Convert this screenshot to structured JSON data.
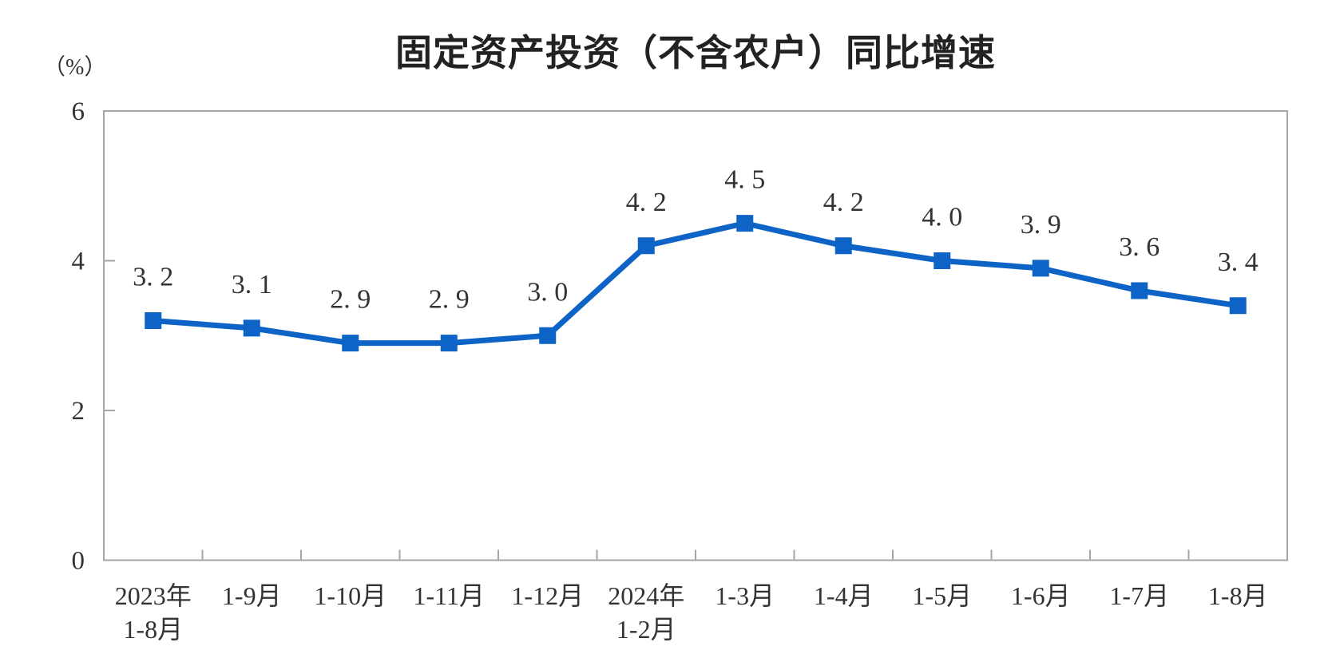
{
  "chart_data": {
    "type": "line",
    "title": "固定资产投资（不含农户）同比增速",
    "unit_label": "（%）",
    "categories": [
      "2023年\n1-8月",
      "1-9月",
      "1-10月",
      "1-11月",
      "1-12月",
      "2024年\n1-2月",
      "1-3月",
      "1-4月",
      "1-5月",
      "1-6月",
      "1-7月",
      "1-8月"
    ],
    "series": [
      {
        "name": "固定资产投资（不含农户）同比增速",
        "values": [
          3.2,
          3.1,
          2.9,
          2.9,
          3.0,
          4.2,
          4.5,
          4.2,
          4.0,
          3.9,
          3.6,
          3.4
        ]
      }
    ],
    "point_labels": [
      "3. 2",
      "3. 1",
      "2. 9",
      "2. 9",
      "3. 0",
      "4. 2",
      "4. 5",
      "4. 2",
      "4. 0",
      "3. 9",
      "3. 6",
      "3. 4"
    ],
    "y_ticks": [
      0,
      2,
      4,
      6
    ],
    "ylim": [
      0,
      6
    ],
    "xlabel": "",
    "ylabel": "（%）",
    "grid": false,
    "legend": "none",
    "colors": {
      "line": "#0e63c6",
      "marker": "#0e63c6",
      "label_text": "#333333",
      "axis": "#a6a6a6",
      "title": "#222222",
      "background": "#ffffff"
    }
  }
}
